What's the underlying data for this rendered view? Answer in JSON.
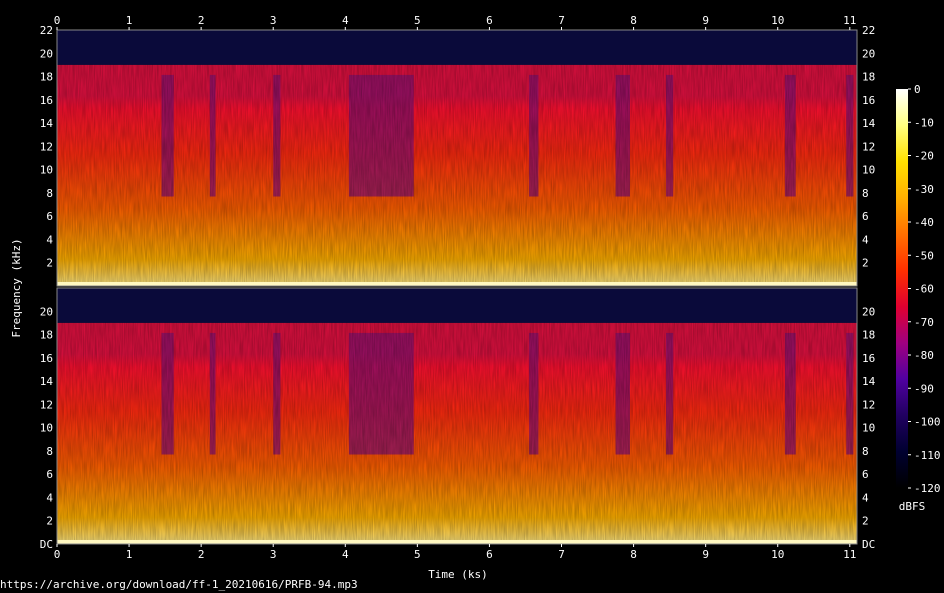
{
  "chart_data": {
    "type": "heatmap",
    "subtype": "spectrogram",
    "channels": 2,
    "xlabel": "Time (ks)",
    "ylabel": "Frequency (kHz)",
    "colorbar_label": "dBFS",
    "x_ticks": [
      "0",
      "1",
      "2",
      "3",
      "4",
      "5",
      "6",
      "7",
      "8",
      "9",
      "10",
      "11"
    ],
    "y_ticks_top": [
      "2",
      "4",
      "6",
      "8",
      "10",
      "12",
      "14",
      "16",
      "18",
      "20",
      "22"
    ],
    "y_ticks_bottom_left": [
      "DC",
      "2",
      "4",
      "6",
      "8",
      "10",
      "12",
      "14",
      "16",
      "18",
      "20"
    ],
    "y_ticks_bottom_right": [
      "DC",
      "2",
      "4",
      "6",
      "8",
      "10",
      "12",
      "14",
      "16",
      "18",
      "20"
    ],
    "colorbar_ticks": [
      "0",
      "-10",
      "-20",
      "-30",
      "-40",
      "-50",
      "-60",
      "-70",
      "-80",
      "-90",
      "-100",
      "-110",
      "-120"
    ],
    "xlim": [
      0,
      11.1
    ],
    "ylim": [
      0,
      22
    ],
    "zlim": [
      -120,
      0
    ],
    "cutoff_khz": 19,
    "quiet_segments_ks": [
      [
        1.45,
        1.62
      ],
      [
        2.12,
        2.2
      ],
      [
        3.0,
        3.1
      ],
      [
        4.05,
        4.95
      ],
      [
        6.55,
        6.68
      ],
      [
        7.75,
        7.95
      ],
      [
        8.45,
        8.55
      ],
      [
        10.1,
        10.25
      ],
      [
        10.95,
        11.05
      ]
    ],
    "colormap": [
      "#ffffff",
      "#ffff80",
      "#ffe000",
      "#ffb000",
      "#ff7000",
      "#ff3000",
      "#e00030",
      "#a00080",
      "#5000a0",
      "#200060",
      "#000030",
      "#000000"
    ]
  },
  "footer": {
    "source_url": "https://archive.org/download/ff-1_20210616/PRFB-94.mp3"
  }
}
